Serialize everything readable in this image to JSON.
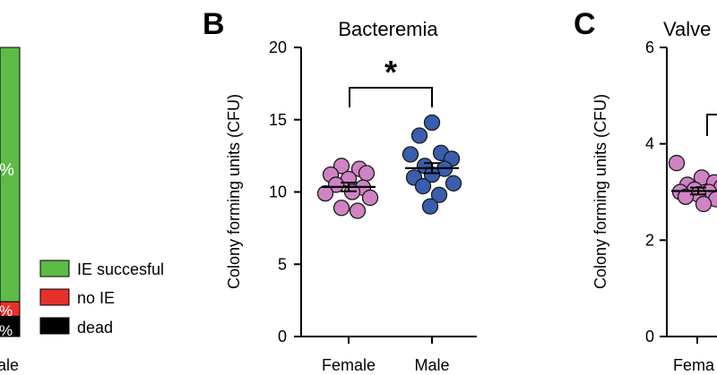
{
  "panel_a": {
    "pct_success": "%",
    "pct_noie": "%",
    "pct_dead": "%",
    "xtick": "ale",
    "legend": [
      {
        "label": "IE succesful",
        "color": "#5DBB46"
      },
      {
        "label": "no IE",
        "color": "#E8312A"
      },
      {
        "label": "dead",
        "color": "#000000"
      }
    ],
    "bar_fractions": {
      "success": 0.88,
      "noie": 0.05,
      "dead": 0.07
    }
  },
  "panel_b": {
    "letter": "B",
    "significance": "*"
  },
  "panel_c": {
    "letter": "C",
    "title": "Valve",
    "ylabel": "Colony forming units (CFU)",
    "ylim": [
      0,
      6
    ],
    "yticks": [
      "0",
      "2",
      "4",
      "6"
    ],
    "xtick": "Fema",
    "female_points": [
      3.6,
      3.3,
      3.2,
      3.15,
      3.1,
      3.05,
      3.0,
      3.0,
      2.95,
      2.9,
      2.85,
      2.75
    ],
    "female_mean": 3.02,
    "female_sem": 0.07
  },
  "chart_data": {
    "type": "scatter",
    "title": "Bacteremia",
    "xlabel": "",
    "ylabel": "Colony forming units (CFU)",
    "ylim": [
      0,
      20
    ],
    "yticks": [
      "0",
      "5",
      "10",
      "15",
      "20"
    ],
    "categories": [
      "Female",
      "Male"
    ],
    "series": [
      {
        "name": "Female",
        "color": "#D083C4",
        "values": [
          11.8,
          11.6,
          11.3,
          11.2,
          10.9,
          10.5,
          10.3,
          10.0,
          9.9,
          9.6,
          8.9,
          8.7
        ],
        "mean": 10.35,
        "sem": 0.3
      },
      {
        "name": "Male",
        "color": "#3A5DAE",
        "values": [
          14.8,
          13.9,
          12.7,
          12.6,
          12.3,
          11.8,
          11.6,
          11.2,
          11.0,
          10.6,
          10.4,
          9.8,
          9.0
        ],
        "mean": 11.65,
        "sem": 0.35
      }
    ]
  }
}
